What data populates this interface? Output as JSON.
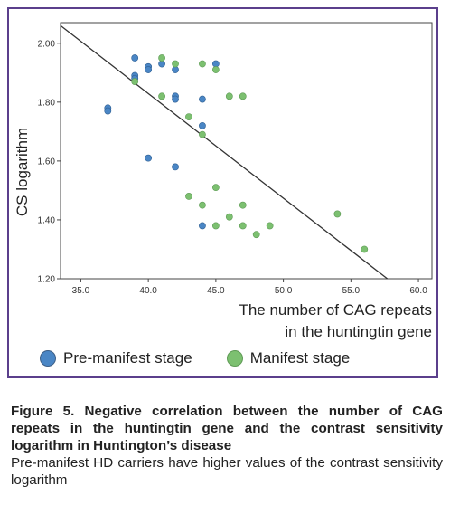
{
  "chart_data": {
    "type": "scatter",
    "xlabel_line1": "The number of CAG repeats",
    "xlabel_line2": "in the huntingtin gene",
    "ylabel": "CS logarithm",
    "xlim": [
      33.5,
      61
    ],
    "ylim": [
      1.2,
      2.07
    ],
    "x_ticks": [
      "35.0",
      "40.0",
      "45.0",
      "50.0",
      "55.0",
      "60.0"
    ],
    "y_ticks": [
      "1.20",
      "1.40",
      "1.60",
      "1.80",
      "2.00"
    ],
    "fit_line": {
      "x": [
        33.5,
        57.7
      ],
      "y": [
        2.06,
        1.2
      ]
    },
    "series": [
      {
        "name": "Pre-manifest stage",
        "color": "#4a86c5",
        "points": [
          [
            37,
            1.78
          ],
          [
            37,
            1.77
          ],
          [
            39,
            1.95
          ],
          [
            39,
            1.89
          ],
          [
            39,
            1.88
          ],
          [
            40,
            1.92
          ],
          [
            40,
            1.91
          ],
          [
            40,
            1.61
          ],
          [
            41,
            1.93
          ],
          [
            42,
            1.91
          ],
          [
            42,
            1.82
          ],
          [
            42,
            1.81
          ],
          [
            42,
            1.58
          ],
          [
            44,
            1.81
          ],
          [
            44,
            1.72
          ],
          [
            44,
            1.38
          ],
          [
            45,
            1.93
          ]
        ]
      },
      {
        "name": "Manifest stage",
        "color": "#7cc070",
        "points": [
          [
            39,
            1.87
          ],
          [
            41,
            1.95
          ],
          [
            41,
            1.82
          ],
          [
            42,
            1.93
          ],
          [
            43,
            1.75
          ],
          [
            43,
            1.48
          ],
          [
            44,
            1.93
          ],
          [
            44,
            1.69
          ],
          [
            44,
            1.45
          ],
          [
            45,
            1.91
          ],
          [
            45,
            1.51
          ],
          [
            45,
            1.38
          ],
          [
            46,
            1.82
          ],
          [
            46,
            1.41
          ],
          [
            47,
            1.82
          ],
          [
            47,
            1.45
          ],
          [
            47,
            1.38
          ],
          [
            48,
            1.35
          ],
          [
            49,
            1.38
          ],
          [
            54,
            1.42
          ],
          [
            56,
            1.3
          ]
        ]
      }
    ]
  },
  "legend": {
    "pre_manifest": "Pre-manifest stage",
    "manifest": "Manifest stage"
  },
  "caption": {
    "title": "Figure 5. Negative correlation between the number of CAG repeats in the huntingtin gene and the contrast sensitivity logarithm in Huntington’s disease",
    "text": "Pre-manifest HD carriers have higher values of the contrast sensitivity logarithm"
  }
}
